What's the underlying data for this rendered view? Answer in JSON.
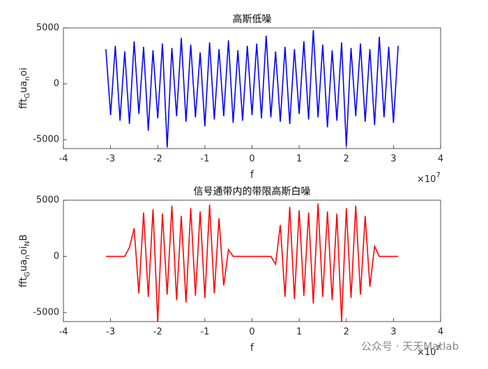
{
  "chart_data": [
    {
      "type": "line",
      "title": "高斯低噪",
      "xlabel": "f",
      "ylabel": [
        "fft",
        "G",
        "ua",
        "n",
        "oi"
      ],
      "x_exponent_base": "×10",
      "x_exponent": "7",
      "xlim": [
        -4,
        4
      ],
      "xticks": [
        -4,
        -3,
        -2,
        -1,
        0,
        1,
        2,
        3,
        4
      ],
      "ylim": [
        -5800,
        5000
      ],
      "yticks": [
        -5000,
        0,
        5000
      ],
      "x": [
        -3.1,
        -3.0,
        -2.9,
        -2.8,
        -2.7,
        -2.6,
        -2.5,
        -2.4,
        -2.3,
        -2.2,
        -2.1,
        -2.0,
        -1.9,
        -1.8,
        -1.7,
        -1.6,
        -1.5,
        -1.4,
        -1.3,
        -1.2,
        -1.1,
        -1.0,
        -0.9,
        -0.8,
        -0.7,
        -0.6,
        -0.5,
        -0.4,
        -0.3,
        -0.2,
        -0.1,
        0,
        0.1,
        0.2,
        0.3,
        0.4,
        0.5,
        0.6,
        0.7,
        0.8,
        0.9,
        1.0,
        1.1,
        1.2,
        1.3,
        1.4,
        1.5,
        1.6,
        1.7,
        1.8,
        1.9,
        2.0,
        2.1,
        2.2,
        2.3,
        2.4,
        2.5,
        2.6,
        2.7,
        2.8,
        2.9,
        3.0,
        3.1
      ],
      "series": [
        {
          "color": "#0000ff",
          "values": [
            3100,
            -2800,
            3400,
            -3300,
            2900,
            -3600,
            3800,
            -2700,
            3300,
            -4200,
            3000,
            -3100,
            3600,
            -5700,
            3200,
            -2900,
            4100,
            -3400,
            3500,
            -3000,
            2800,
            -3800,
            3700,
            -3200,
            3100,
            -2900,
            3900,
            -3500,
            3000,
            -3300,
            3400,
            -2800,
            3600,
            -3100,
            4300,
            -3000,
            2900,
            -3400,
            3300,
            -3600,
            3100,
            -2700,
            3800,
            -3200,
            4800,
            -3000,
            3500,
            -3900,
            3000,
            -3300,
            3700,
            -5600,
            3200,
            -2900,
            3600,
            -3400,
            3100,
            -3700,
            4200,
            -3000,
            3300,
            -3500,
            3400
          ]
        }
      ]
    },
    {
      "type": "line",
      "title": "信号通带内的带限高斯白噪",
      "xlabel": "f",
      "ylabel": [
        "fft",
        "G",
        "ua",
        "n",
        "oi",
        "N",
        "B"
      ],
      "x_exponent_base": "×10",
      "x_exponent": "7",
      "xlim": [
        -4,
        4
      ],
      "xticks": [
        -4,
        -3,
        -2,
        -1,
        0,
        1,
        2,
        3,
        4
      ],
      "ylim": [
        -5800,
        5000
      ],
      "yticks": [
        -5000,
        0,
        5000
      ],
      "x": [
        -3.1,
        -3.0,
        -2.9,
        -2.8,
        -2.7,
        -2.6,
        -2.5,
        -2.4,
        -2.3,
        -2.2,
        -2.1,
        -2.0,
        -1.9,
        -1.8,
        -1.7,
        -1.6,
        -1.5,
        -1.4,
        -1.3,
        -1.2,
        -1.1,
        -1.0,
        -0.9,
        -0.8,
        -0.7,
        -0.6,
        -0.5,
        -0.4,
        -0.3,
        -0.2,
        -0.1,
        0,
        0.1,
        0.2,
        0.3,
        0.4,
        0.5,
        0.6,
        0.7,
        0.8,
        0.9,
        1.0,
        1.1,
        1.2,
        1.3,
        1.4,
        1.5,
        1.6,
        1.7,
        1.8,
        1.9,
        2.0,
        2.1,
        2.2,
        2.3,
        2.4,
        2.5,
        2.6,
        2.7,
        2.8,
        2.9,
        3.0,
        3.1
      ],
      "series": [
        {
          "color": "#ff0000",
          "values": [
            0,
            0,
            0,
            0,
            0,
            800,
            2500,
            -3300,
            3900,
            -3600,
            4200,
            -5800,
            3800,
            -3400,
            4500,
            -3900,
            3600,
            -4100,
            4300,
            -3500,
            4000,
            -3700,
            4600,
            -3300,
            3400,
            -2600,
            600,
            0,
            0,
            0,
            0,
            0,
            0,
            0,
            0,
            0,
            -700,
            2800,
            -3600,
            4400,
            -3800,
            4100,
            -3500,
            3900,
            -4200,
            4700,
            -3600,
            4000,
            -3900,
            3800,
            -5800,
            4300,
            -3700,
            4500,
            -3400,
            3600,
            -2700,
            900,
            0,
            0,
            0,
            0,
            0
          ]
        }
      ]
    }
  ],
  "watermark": "公众号 · 天天Matlab"
}
